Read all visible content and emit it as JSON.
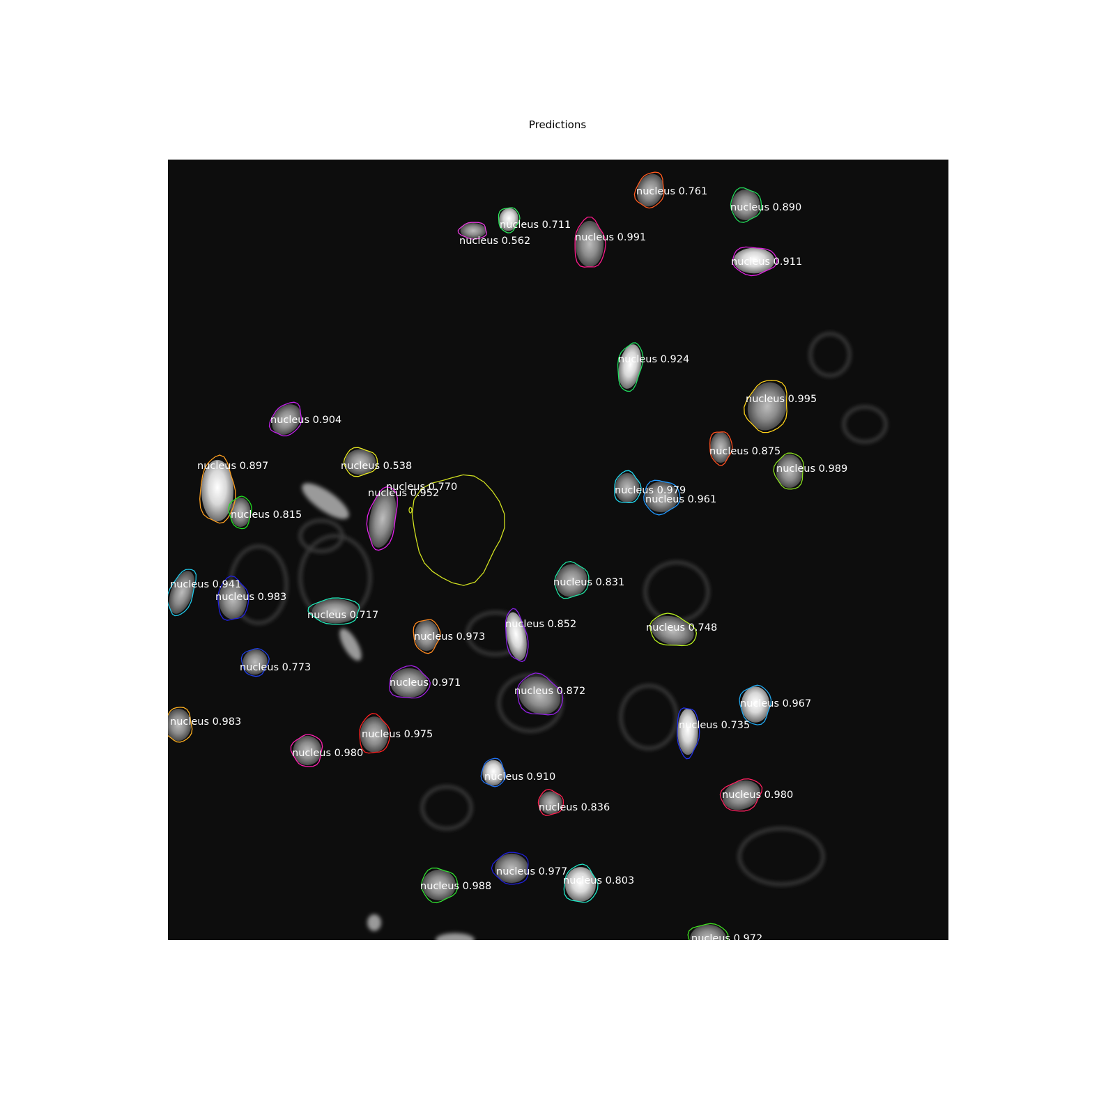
{
  "figure": {
    "title": "Predictions"
  },
  "class_name": "nucleus",
  "detections": [
    {
      "label": "nucleus 0.761",
      "color": "#ff5a1e"
    },
    {
      "label": "nucleus 0.890",
      "color": "#23d95a"
    },
    {
      "label": "nucleus 0.711",
      "color": "#2ee85c"
    },
    {
      "label": "nucleus 0.562",
      "color": "#e83ce0"
    },
    {
      "label": "nucleus 0.991",
      "color": "#ff1a8c"
    },
    {
      "label": "nucleus 0.911",
      "color": "#e020e0"
    },
    {
      "label": "nucleus 0.924",
      "color": "#20e060"
    },
    {
      "label": "nucleus 0.995",
      "color": "#ffd21a"
    },
    {
      "label": "nucleus 0.904",
      "color": "#c020e8"
    },
    {
      "label": "nucleus 0.875",
      "color": "#ff5020"
    },
    {
      "label": "nucleus 0.989",
      "color": "#8ae020"
    },
    {
      "label": "nucleus 0.897",
      "color": "#ffa020"
    },
    {
      "label": "nucleus 0.538",
      "color": "#e8e820"
    },
    {
      "label": "nucleus 0.770",
      "color": "#d0e020"
    },
    {
      "label": "nucleus 0.952",
      "color": "#e020e8"
    },
    {
      "label": "nucleus 0.979",
      "color": "#20d8f0"
    },
    {
      "label": "nucleus 0.961",
      "color": "#2098ff"
    },
    {
      "label": "nucleus 0.815",
      "color": "#20e020"
    },
    {
      "label": "nucleus 0.941",
      "color": "#20c8e8"
    },
    {
      "label": "nucleus 0.983",
      "color": "#2020e0"
    },
    {
      "label": "nucleus 0.831",
      "color": "#20e0a0"
    },
    {
      "label": "nucleus 0.717",
      "color": "#20e8b8"
    },
    {
      "label": "nucleus 0.852",
      "color": "#8a20e8"
    },
    {
      "label": "nucleus 0.748",
      "color": "#b8f020"
    },
    {
      "label": "nucleus 0.973",
      "color": "#ff8a20"
    },
    {
      "label": "nucleus 0.773",
      "color": "#2040e8"
    },
    {
      "label": "nucleus 0.971",
      "color": "#a020e0"
    },
    {
      "label": "nucleus 0.872",
      "color": "#9020e0"
    },
    {
      "label": "nucleus 0.967",
      "color": "#20a8f0"
    },
    {
      "label": "nucleus 0.983",
      "color": "#ffb020"
    },
    {
      "label": "nucleus 0.975",
      "color": "#ff2020"
    },
    {
      "label": "nucleus 0.735",
      "color": "#2030e8"
    },
    {
      "label": "nucleus 0.980",
      "color": "#ff20b0"
    },
    {
      "label": "nucleus 0.910",
      "color": "#2070f0"
    },
    {
      "label": "nucleus 0.836",
      "color": "#ff2050"
    },
    {
      "label": "nucleus 0.980",
      "color": "#ff2060"
    },
    {
      "label": "nucleus 0.977",
      "color": "#2020d8"
    },
    {
      "label": "nucleus 0.803",
      "color": "#20e8c8"
    },
    {
      "label": "nucleus 0.988",
      "color": "#30e030"
    },
    {
      "label": "nucleus 0.972",
      "color": "#40e020"
    }
  ]
}
